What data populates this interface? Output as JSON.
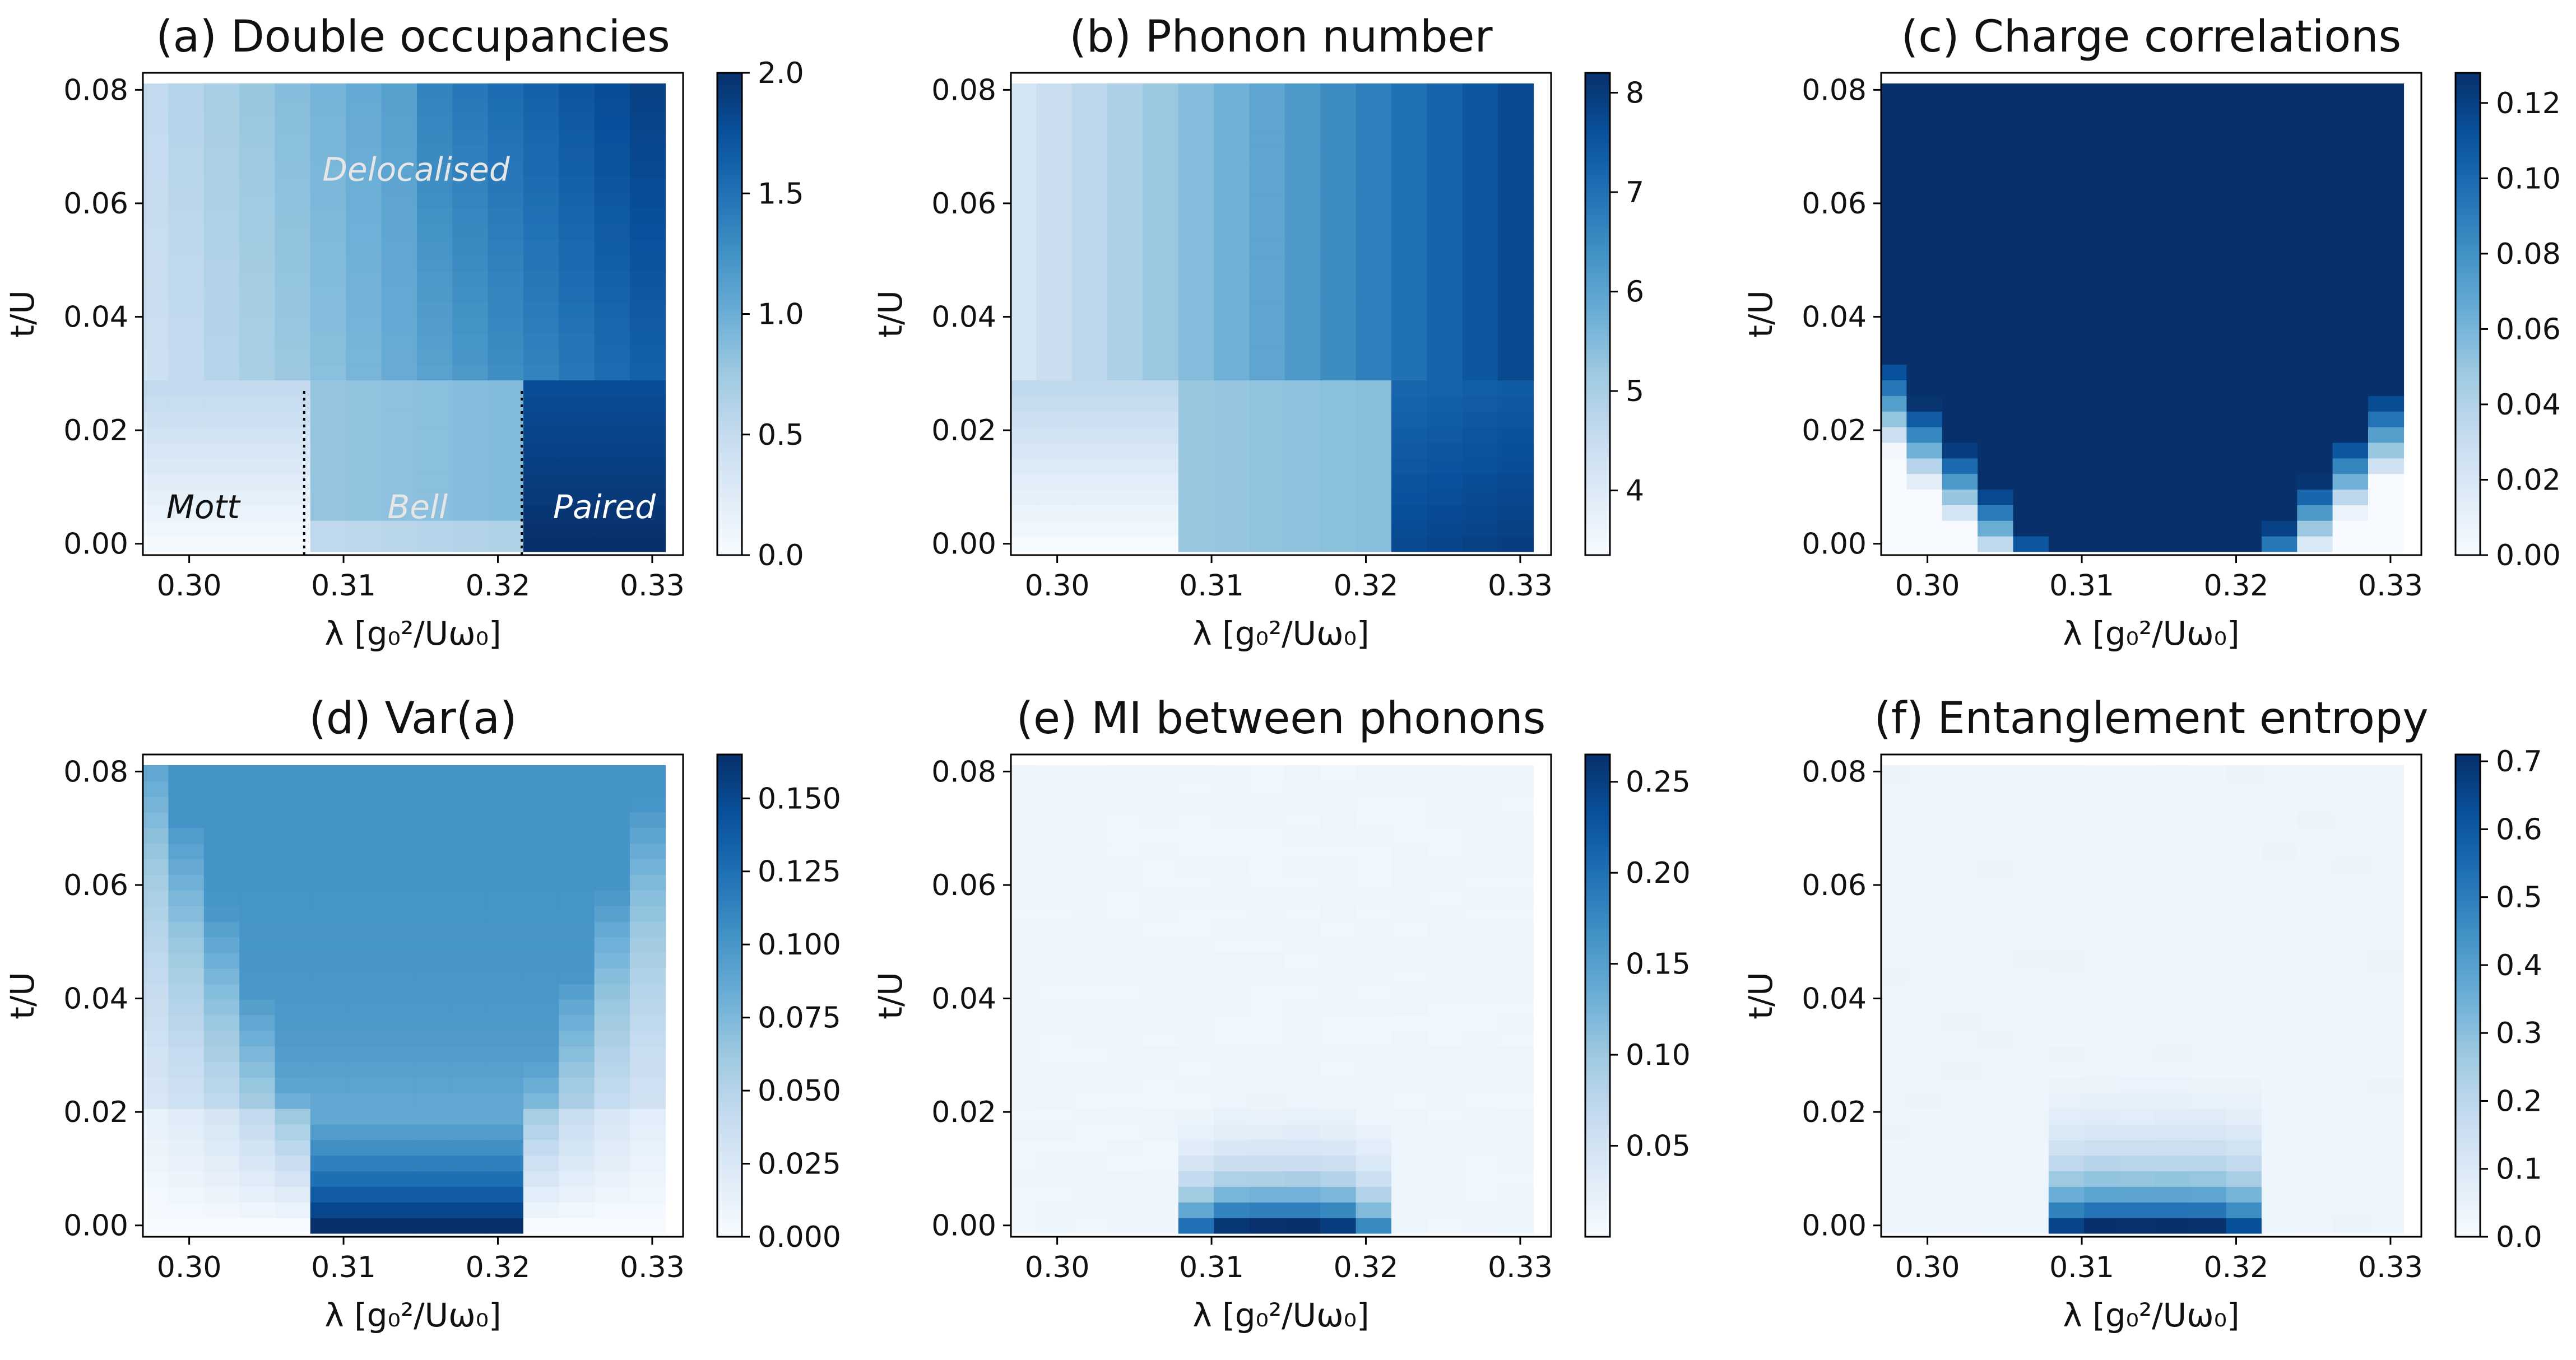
{
  "chart_data": [
    {
      "id": "a",
      "type": "heatmap",
      "title": "(a) Double occupancies",
      "field": "docc",
      "xlabel": "λ   [g₀²/Uω₀]",
      "ylabel": "t/U",
      "xlim": [
        0.297,
        0.332
      ],
      "ylim": [
        -0.002,
        0.083
      ],
      "xticks": [
        0.3,
        0.31,
        0.32,
        0.33
      ],
      "xtick_labels": [
        "0.30",
        "0.31",
        "0.32",
        "0.33"
      ],
      "yticks": [
        0.0,
        0.02,
        0.04,
        0.06,
        0.08
      ],
      "ytick_labels": [
        "0.00",
        "0.02",
        "0.04",
        "0.06",
        "0.08"
      ],
      "colorbar": {
        "range": [
          0.0,
          2.0
        ],
        "ticks": [
          0.0,
          0.5,
          1.0,
          1.5,
          2.0
        ],
        "tick_labels": [
          "0.0",
          "0.5",
          "1.0",
          "1.5",
          "2.0"
        ]
      },
      "annotations": [
        {
          "text": "Delocalised",
          "x": 0.3147,
          "y": 0.064,
          "color": "#e6e6e6"
        },
        {
          "text": "Mott",
          "x": 0.3009,
          "y": 0.0045,
          "color": "#111111"
        },
        {
          "text": "Bell",
          "x": 0.3148,
          "y": 0.0045,
          "color": "#e6e6e6"
        },
        {
          "text": "Paired",
          "x": 0.3269,
          "y": 0.0045,
          "color": "#ffffff"
        }
      ],
      "boundaries": [
        {
          "x": 0.30745,
          "y_range": [
            -0.002,
            0.0275
          ]
        },
        {
          "x": 0.32155,
          "y_range": [
            -0.002,
            0.0275
          ]
        }
      ]
    },
    {
      "id": "b",
      "type": "heatmap",
      "title": "(b) Phonon number",
      "field": "phonon",
      "xlabel": "λ   [g₀²/Uω₀]",
      "ylabel": "t/U",
      "xlim": [
        0.297,
        0.332
      ],
      "ylim": [
        -0.002,
        0.083
      ],
      "xticks": [
        0.3,
        0.31,
        0.32,
        0.33
      ],
      "xtick_labels": [
        "0.30",
        "0.31",
        "0.32",
        "0.33"
      ],
      "yticks": [
        0.0,
        0.02,
        0.04,
        0.06,
        0.08
      ],
      "ytick_labels": [
        "0.00",
        "0.02",
        "0.04",
        "0.06",
        "0.08"
      ],
      "colorbar": {
        "range": [
          3.35,
          8.2
        ],
        "ticks": [
          4,
          5,
          6,
          7,
          8
        ],
        "tick_labels": [
          "4",
          "5",
          "6",
          "7",
          "8"
        ]
      },
      "annotations": [],
      "boundaries": []
    },
    {
      "id": "c",
      "type": "heatmap",
      "title": "(c) Charge correlations",
      "field": "charge",
      "xlabel": "λ   [g₀²/Uω₀]",
      "ylabel": "t/U",
      "xlim": [
        0.297,
        0.332
      ],
      "ylim": [
        -0.002,
        0.083
      ],
      "xticks": [
        0.3,
        0.31,
        0.32,
        0.33
      ],
      "xtick_labels": [
        "0.30",
        "0.31",
        "0.32",
        "0.33"
      ],
      "yticks": [
        0.0,
        0.02,
        0.04,
        0.06,
        0.08
      ],
      "ytick_labels": [
        "0.00",
        "0.02",
        "0.04",
        "0.06",
        "0.08"
      ],
      "colorbar": {
        "range": [
          0.0,
          0.128
        ],
        "ticks": [
          0.0,
          0.02,
          0.04,
          0.06,
          0.08,
          0.1,
          0.12
        ],
        "tick_labels": [
          "0.00",
          "0.02",
          "0.04",
          "0.06",
          "0.08",
          "0.10",
          "0.12"
        ]
      },
      "annotations": [],
      "boundaries": []
    },
    {
      "id": "d",
      "type": "heatmap",
      "title": "(d) Var(a)",
      "field": "vara",
      "xlabel": "λ   [g₀²/Uω₀]",
      "ylabel": "t/U",
      "xlim": [
        0.297,
        0.332
      ],
      "ylim": [
        -0.002,
        0.083
      ],
      "xticks": [
        0.3,
        0.31,
        0.32,
        0.33
      ],
      "xtick_labels": [
        "0.30",
        "0.31",
        "0.32",
        "0.33"
      ],
      "yticks": [
        0.0,
        0.02,
        0.04,
        0.06,
        0.08
      ],
      "ytick_labels": [
        "0.00",
        "0.02",
        "0.04",
        "0.06",
        "0.08"
      ],
      "colorbar": {
        "range": [
          0.0,
          0.165
        ],
        "ticks": [
          0.0,
          0.025,
          0.05,
          0.075,
          0.1,
          0.125,
          0.15
        ],
        "tick_labels": [
          "0.000",
          "0.025",
          "0.050",
          "0.075",
          "0.100",
          "0.125",
          "0.150"
        ]
      },
      "annotations": [],
      "boundaries": []
    },
    {
      "id": "e",
      "type": "heatmap",
      "title": "(e) MI between phonons",
      "field": "mi",
      "xlabel": "λ   [g₀²/Uω₀]",
      "ylabel": "t/U",
      "xlim": [
        0.297,
        0.332
      ],
      "ylim": [
        -0.002,
        0.083
      ],
      "xticks": [
        0.3,
        0.31,
        0.32,
        0.33
      ],
      "xtick_labels": [
        "0.30",
        "0.31",
        "0.32",
        "0.33"
      ],
      "yticks": [
        0.0,
        0.02,
        0.04,
        0.06,
        0.08
      ],
      "ytick_labels": [
        "0.00",
        "0.02",
        "0.04",
        "0.06",
        "0.08"
      ],
      "colorbar": {
        "range": [
          0.0,
          0.265
        ],
        "ticks": [
          0.05,
          0.1,
          0.15,
          0.2,
          0.25
        ],
        "tick_labels": [
          "0.05",
          "0.10",
          "0.15",
          "0.20",
          "0.25"
        ]
      },
      "annotations": [],
      "boundaries": []
    },
    {
      "id": "f",
      "type": "heatmap",
      "title": "(f) Entanglement entropy",
      "field": "ent",
      "xlabel": "λ   [g₀²/Uω₀]",
      "ylabel": "t/U",
      "xlim": [
        0.297,
        0.332
      ],
      "ylim": [
        -0.002,
        0.083
      ],
      "xticks": [
        0.3,
        0.31,
        0.32,
        0.33
      ],
      "xtick_labels": [
        "0.30",
        "0.31",
        "0.32",
        "0.33"
      ],
      "yticks": [
        0.0,
        0.02,
        0.04,
        0.06,
        0.08
      ],
      "ytick_labels": [
        "0.00",
        "0.02",
        "0.04",
        "0.06",
        "0.08"
      ],
      "colorbar": {
        "range": [
          0.0,
          0.71
        ],
        "ticks": [
          0.0,
          0.1,
          0.2,
          0.3,
          0.4,
          0.5,
          0.6,
          0.7
        ],
        "tick_labels": [
          "0.0",
          "0.1",
          "0.2",
          "0.3",
          "0.4",
          "0.5",
          "0.6",
          "0.7"
        ]
      },
      "annotations": [],
      "boundaries": []
    }
  ],
  "grid": {
    "lambda_columns": 15,
    "lambda_start": 0.2975,
    "lambda_step": 0.0023,
    "tU_rows": 30,
    "tU_start": 0.0,
    "tU_step": 0.00275
  },
  "colormap": {
    "name": "Blues",
    "stops": [
      "#f7fbff",
      "#deebf7",
      "#c6dbef",
      "#9ecae1",
      "#6baed6",
      "#4292c6",
      "#2171b5",
      "#08519c",
      "#08306b"
    ]
  }
}
